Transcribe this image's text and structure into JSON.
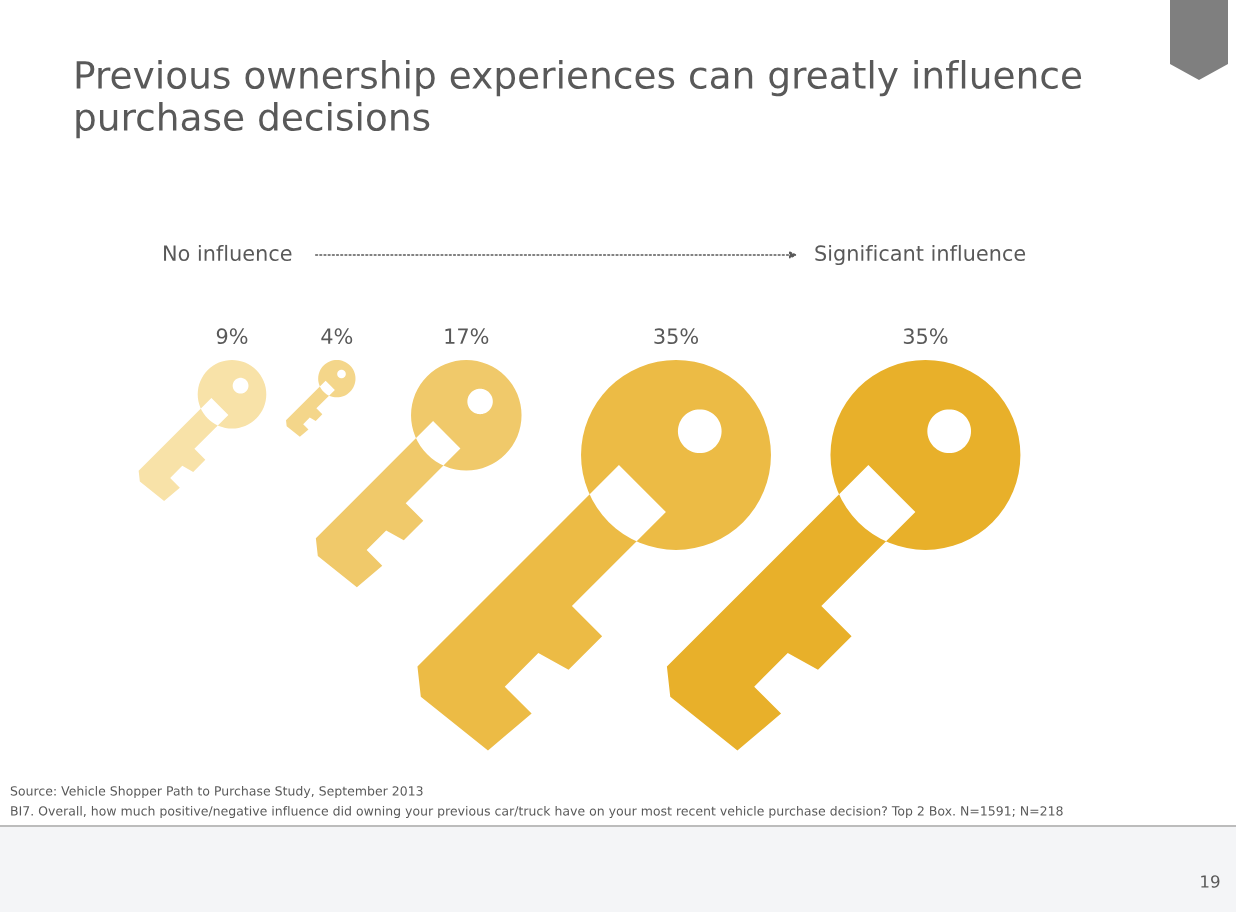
{
  "chart_data": {
    "type": "other",
    "title": "Previous ownership experiences can greatly influence purchase decisions",
    "categories": [
      null,
      null,
      null,
      null,
      null
    ],
    "values": [
      9,
      4,
      17,
      35,
      35
    ],
    "value_labels": [
      "9%",
      "4%",
      "17%",
      "35%",
      "35%"
    ],
    "colors": [
      "#f8e2a8",
      "#f4d68a",
      "#f0c96a",
      "#ecbb45",
      "#e8b02a"
    ],
    "annotations": [
      "No influence",
      "Significant influence",
      "Source: Vehicle Shopper Path to Purchase Study, September 2013",
      "BI7. Overall, how much positive/negative influence did owning your previous car/truck have on your most recent vehicle purchase decision? Top 2 Box. N=1591; N=218",
      "19"
    ]
  }
}
